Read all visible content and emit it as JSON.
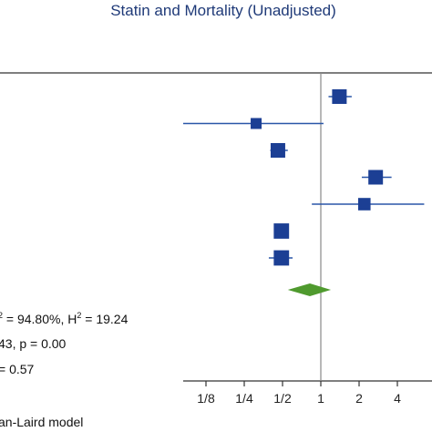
{
  "chart_data": {
    "type": "forest",
    "title": "Statin and Mortality (Unadjusted)",
    "scale": "log2",
    "reference_value": 1,
    "tick_labels": [
      "1/8",
      "1/4",
      "1/2",
      "1",
      "2",
      "4"
    ],
    "tick_values": [
      0.125,
      0.25,
      0.5,
      1,
      2,
      4
    ],
    "studies": [
      {
        "estimate": 1.4,
        "ci_low": 1.15,
        "ci_high": 1.75,
        "weight": 1.0
      },
      {
        "estimate": 0.31,
        "ci_low": 0.06,
        "ci_high": 1.05,
        "weight": 0.75
      },
      {
        "estimate": 0.46,
        "ci_low": 0.4,
        "ci_high": 0.55,
        "weight": 1.0
      },
      {
        "estimate": 2.7,
        "ci_low": 2.1,
        "ci_high": 3.6,
        "weight": 1.0
      },
      {
        "estimate": 2.2,
        "ci_low": 0.85,
        "ci_high": 6.5,
        "weight": 0.85
      },
      {
        "estimate": 0.49,
        "ci_low": 0.45,
        "ci_high": 0.55,
        "weight": 1.05
      },
      {
        "estimate": 0.49,
        "ci_low": 0.39,
        "ci_high": 0.6,
        "weight": 1.05
      }
    ],
    "pooled": {
      "estimate": 0.82,
      "ci_low": 0.55,
      "ci_high": 1.2
    },
    "colors": {
      "marker": "#1c3f94",
      "line": "#2a56a8",
      "diamond": "#4f9a2e",
      "axis": "#333333",
      "refline": "#888888"
    },
    "stats": [
      {
        "pre": "",
        "sup1": "2",
        "mid": " = 94.80%, H",
        "sup2": "2",
        "post": " = 19.24"
      },
      {
        "pre": "43, p = 0.00"
      },
      {
        "pre": "= 0.57"
      }
    ],
    "model_label": "an-Laird model"
  }
}
